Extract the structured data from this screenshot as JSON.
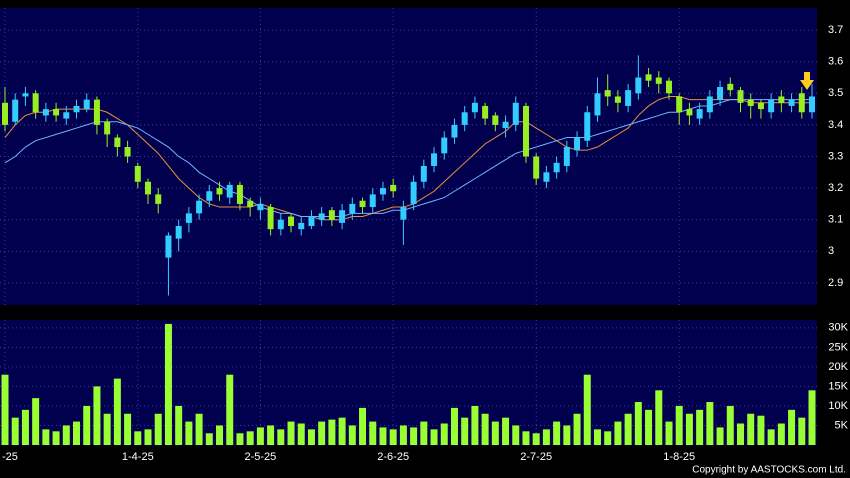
{
  "chart_data": [
    {
      "type": "candlestick",
      "categories": [
        "-25",
        null,
        null,
        null,
        null,
        null,
        null,
        null,
        null,
        null,
        null,
        null,
        null,
        "1-4-25",
        null,
        null,
        null,
        null,
        null,
        null,
        null,
        null,
        null,
        null,
        null,
        "2-5-25",
        null,
        null,
        null,
        null,
        null,
        null,
        null,
        null,
        null,
        null,
        null,
        null,
        "2-6-25",
        null,
        null,
        null,
        null,
        null,
        null,
        null,
        null,
        null,
        null,
        null,
        null,
        null,
        "2-7-25",
        null,
        null,
        null,
        null,
        null,
        null,
        null,
        null,
        null,
        null,
        null,
        null,
        null,
        "1-8-25",
        null,
        null,
        null,
        null,
        null,
        null,
        null,
        null,
        null,
        null,
        null,
        null,
        null
      ],
      "open": [
        3.47,
        3.41,
        3.49,
        3.5,
        3.43,
        3.45,
        3.42,
        3.44,
        3.45,
        3.48,
        3.41,
        3.36,
        3.33,
        3.27,
        3.22,
        3.18,
        2.98,
        3.04,
        3.09,
        3.12,
        3.16,
        3.2,
        3.17,
        3.21,
        3.16,
        3.13,
        3.14,
        3.07,
        3.11,
        3.07,
        3.08,
        3.1,
        3.13,
        3.09,
        3.12,
        3.16,
        3.14,
        3.18,
        3.21,
        3.1,
        3.15,
        3.22,
        3.27,
        3.31,
        3.36,
        3.4,
        3.44,
        3.46,
        3.43,
        3.39,
        3.4,
        3.46,
        3.3,
        3.22,
        3.25,
        3.27,
        3.32,
        3.35,
        3.43,
        3.51,
        3.49,
        3.46,
        3.5,
        3.56,
        3.55,
        3.54,
        3.49,
        3.45,
        3.42,
        3.44,
        3.48,
        3.53,
        3.51,
        3.48,
        3.47,
        3.44,
        3.49,
        3.46,
        3.5,
        3.44
      ],
      "high": [
        3.52,
        3.5,
        3.52,
        3.51,
        3.47,
        3.47,
        3.46,
        3.48,
        3.5,
        3.49,
        3.42,
        3.37,
        3.35,
        3.28,
        3.23,
        3.2,
        3.06,
        3.1,
        3.14,
        3.18,
        3.21,
        3.22,
        3.22,
        3.22,
        3.17,
        3.17,
        3.15,
        3.12,
        3.12,
        3.11,
        3.13,
        3.14,
        3.14,
        3.15,
        3.17,
        3.17,
        3.2,
        3.22,
        3.23,
        3.16,
        3.24,
        3.29,
        3.33,
        3.38,
        3.42,
        3.46,
        3.49,
        3.47,
        3.44,
        3.43,
        3.49,
        3.47,
        3.31,
        3.27,
        3.3,
        3.35,
        3.38,
        3.46,
        3.55,
        3.56,
        3.51,
        3.53,
        3.62,
        3.58,
        3.57,
        3.55,
        3.5,
        3.47,
        3.47,
        3.51,
        3.54,
        3.55,
        3.52,
        3.5,
        3.48,
        3.5,
        3.51,
        3.5,
        3.52,
        3.53
      ],
      "low": [
        3.38,
        3.4,
        3.46,
        3.42,
        3.41,
        3.41,
        3.4,
        3.42,
        3.44,
        3.37,
        3.33,
        3.3,
        3.28,
        3.2,
        3.15,
        3.12,
        2.86,
        3.0,
        3.06,
        3.1,
        3.14,
        3.16,
        3.15,
        3.13,
        3.11,
        3.1,
        3.05,
        3.05,
        3.06,
        3.05,
        3.07,
        3.08,
        3.08,
        3.07,
        3.1,
        3.12,
        3.12,
        3.16,
        3.17,
        3.02,
        3.13,
        3.2,
        3.25,
        3.29,
        3.34,
        3.38,
        3.42,
        3.4,
        3.38,
        3.36,
        3.38,
        3.28,
        3.21,
        3.2,
        3.23,
        3.25,
        3.3,
        3.33,
        3.41,
        3.46,
        3.44,
        3.44,
        3.48,
        3.52,
        3.5,
        3.48,
        3.4,
        3.4,
        3.4,
        3.42,
        3.46,
        3.49,
        3.44,
        3.42,
        3.42,
        3.42,
        3.44,
        3.44,
        3.42,
        3.42
      ],
      "close": [
        3.4,
        3.48,
        3.5,
        3.44,
        3.45,
        3.43,
        3.44,
        3.46,
        3.48,
        3.4,
        3.37,
        3.33,
        3.3,
        3.22,
        3.18,
        3.15,
        3.05,
        3.08,
        3.12,
        3.16,
        3.19,
        3.18,
        3.21,
        3.15,
        3.14,
        3.15,
        3.07,
        3.1,
        3.08,
        3.09,
        3.11,
        3.12,
        3.1,
        3.13,
        3.15,
        3.14,
        3.18,
        3.2,
        3.19,
        3.14,
        3.22,
        3.27,
        3.31,
        3.36,
        3.4,
        3.44,
        3.47,
        3.42,
        3.4,
        3.41,
        3.47,
        3.3,
        3.23,
        3.25,
        3.28,
        3.33,
        3.36,
        3.44,
        3.5,
        3.49,
        3.47,
        3.51,
        3.55,
        3.54,
        3.53,
        3.5,
        3.44,
        3.43,
        3.45,
        3.49,
        3.52,
        3.51,
        3.47,
        3.46,
        3.45,
        3.48,
        3.47,
        3.48,
        3.44,
        3.49
      ],
      "up_color": "#33ccff",
      "down_color": "#99ee22",
      "series": [
        {
          "color": "#e8903a",
          "values": [
            3.36,
            3.4,
            3.43,
            3.44,
            3.44,
            3.45,
            3.45,
            3.45,
            3.45,
            3.45,
            3.44,
            3.42,
            3.4,
            3.37,
            3.34,
            3.31,
            3.27,
            3.23,
            3.2,
            3.17,
            3.15,
            3.14,
            3.14,
            3.14,
            3.14,
            3.15,
            3.14,
            3.13,
            3.12,
            3.11,
            3.11,
            3.1,
            3.1,
            3.1,
            3.11,
            3.11,
            3.12,
            3.13,
            3.14,
            3.14,
            3.15,
            3.17,
            3.19,
            3.22,
            3.25,
            3.28,
            3.31,
            3.34,
            3.36,
            3.38,
            3.41,
            3.41,
            3.39,
            3.37,
            3.35,
            3.33,
            3.32,
            3.32,
            3.33,
            3.35,
            3.37,
            3.39,
            3.43,
            3.46,
            3.48,
            3.49,
            3.49,
            3.48,
            3.48,
            3.48,
            3.48,
            3.48,
            3.48,
            3.47,
            3.47,
            3.47,
            3.47,
            3.47,
            3.47,
            3.47
          ]
        },
        {
          "color": "#6fb4ff",
          "values": [
            3.28,
            3.3,
            3.33,
            3.35,
            3.36,
            3.37,
            3.38,
            3.39,
            3.4,
            3.41,
            3.41,
            3.41,
            3.4,
            3.39,
            3.37,
            3.35,
            3.33,
            3.3,
            3.28,
            3.25,
            3.23,
            3.21,
            3.19,
            3.18,
            3.16,
            3.14,
            3.13,
            3.12,
            3.12,
            3.11,
            3.11,
            3.11,
            3.11,
            3.11,
            3.12,
            3.12,
            3.12,
            3.12,
            3.13,
            3.13,
            3.14,
            3.15,
            3.16,
            3.17,
            3.19,
            3.21,
            3.23,
            3.25,
            3.27,
            3.29,
            3.31,
            3.32,
            3.33,
            3.34,
            3.35,
            3.36,
            3.36,
            3.36,
            3.37,
            3.38,
            3.39,
            3.4,
            3.41,
            3.42,
            3.43,
            3.44,
            3.44,
            3.45,
            3.46,
            3.46,
            3.47,
            3.48,
            3.48,
            3.48,
            3.48,
            3.48,
            3.48,
            3.48,
            3.48,
            3.48
          ]
        }
      ],
      "ylim": [
        2.83,
        3.77
      ],
      "yticks": [
        2.9,
        3,
        3.1,
        3.2,
        3.3,
        3.4,
        3.5,
        3.6,
        3.7
      ],
      "grid": true
    },
    {
      "type": "bar",
      "color": "#99ff33",
      "values": [
        18000,
        7000,
        9000,
        12000,
        4000,
        3500,
        5000,
        6000,
        10000,
        15000,
        8000,
        17000,
        8000,
        3500,
        4000,
        8000,
        31000,
        10000,
        6000,
        8000,
        3000,
        5000,
        18000,
        3000,
        3500,
        4500,
        5000,
        4000,
        6000,
        5500,
        4000,
        6000,
        6500,
        7000,
        5000,
        9500,
        6000,
        4500,
        4000,
        5000,
        4500,
        6000,
        4000,
        5500,
        9500,
        7000,
        10000,
        8000,
        6000,
        7000,
        5000,
        3500,
        3000,
        4000,
        6000,
        5000,
        8000,
        18000,
        4000,
        3500,
        6000,
        8000,
        11000,
        9000,
        14000,
        6000,
        10000,
        8000,
        9000,
        11000,
        4500,
        10000,
        5500,
        8000,
        7500,
        4000,
        5500,
        9000,
        7000,
        14000
      ],
      "ylim": [
        0,
        32000
      ],
      "yticks": [
        {
          "value": 5000,
          "label": "5K"
        },
        {
          "value": 10000,
          "label": "10K"
        },
        {
          "value": 15000,
          "label": "15K"
        },
        {
          "value": 20000,
          "label": "20K"
        },
        {
          "value": 25000,
          "label": "25K"
        },
        {
          "value": 30000,
          "label": "30K"
        }
      ],
      "grid": true
    }
  ],
  "copyright": "Copyright by AASTOCKS.com Ltd."
}
